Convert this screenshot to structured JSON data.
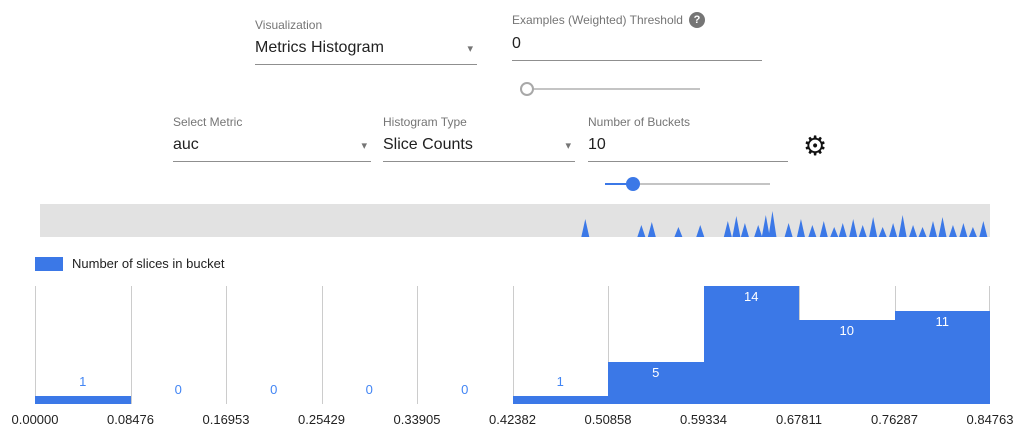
{
  "icons": {
    "help": "?",
    "gear": "⚙",
    "dropdown_arrow": "▾"
  },
  "controls": {
    "visualization": {
      "label": "Visualization",
      "value": "Metrics Histogram"
    },
    "threshold": {
      "label": "Examples (Weighted) Threshold",
      "value": "0",
      "slider_pos": 0
    },
    "select_metric": {
      "label": "Select Metric",
      "value": "auc"
    },
    "histogram_type": {
      "label": "Histogram Type",
      "value": "Slice Counts"
    },
    "num_buckets": {
      "label": "Number of Buckets",
      "value": "10",
      "slider_pos": 0.17
    }
  },
  "legend": {
    "label": "Number of slices in bucket",
    "color": "#3b78e7"
  },
  "overview": {
    "spikes": [
      [
        0.574,
        18
      ],
      [
        0.633,
        12
      ],
      [
        0.644,
        15
      ],
      [
        0.672,
        10
      ],
      [
        0.695,
        12
      ],
      [
        0.724,
        16
      ],
      [
        0.733,
        21
      ],
      [
        0.742,
        14
      ],
      [
        0.756,
        12
      ],
      [
        0.764,
        22
      ],
      [
        0.771,
        26
      ],
      [
        0.788,
        14
      ],
      [
        0.801,
        18
      ],
      [
        0.813,
        12
      ],
      [
        0.825,
        16
      ],
      [
        0.836,
        10
      ],
      [
        0.845,
        14
      ],
      [
        0.856,
        18
      ],
      [
        0.866,
        12
      ],
      [
        0.877,
        20
      ],
      [
        0.887,
        10
      ],
      [
        0.898,
        14
      ],
      [
        0.908,
        22
      ],
      [
        0.919,
        12
      ],
      [
        0.929,
        10
      ],
      [
        0.94,
        16
      ],
      [
        0.95,
        20
      ],
      [
        0.961,
        12
      ],
      [
        0.972,
        14
      ],
      [
        0.982,
        10
      ],
      [
        0.993,
        16
      ]
    ]
  },
  "chart_data": {
    "type": "bar",
    "title": "Number of slices in bucket",
    "x_ticks": [
      "0.00000",
      "0.08476",
      "0.16953",
      "0.25429",
      "0.33905",
      "0.42382",
      "0.50858",
      "0.59334",
      "0.67811",
      "0.76287",
      "0.84763"
    ],
    "values": [
      1,
      0,
      0,
      0,
      0,
      1,
      5,
      14,
      10,
      11
    ],
    "ylim": [
      0,
      14
    ],
    "bar_color": "#3b78e7",
    "label_color_inside": "#ffffff",
    "label_color_outside": "#4285f4",
    "grid": true,
    "legend_position": "top-left"
  }
}
